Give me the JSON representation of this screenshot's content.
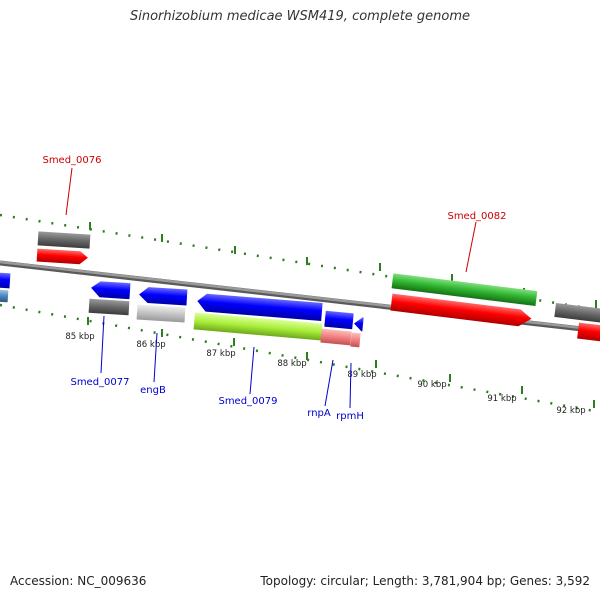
{
  "title": "Sinorhizobium medicae WSM419, complete genome",
  "footer": {
    "accession": "Accession: NC_009636",
    "summary": "Topology: circular; Length: 3,781,904 bp; Genes: 3,592"
  },
  "ticks": [
    "85 kbp",
    "86 kbp",
    "87 kbp",
    "88 kbp",
    "89 kbp",
    "90 kbp",
    "91 kbp",
    "92 kbp"
  ],
  "gene_labels": {
    "top": [
      "Smed_0076",
      "Smed_0082"
    ],
    "bottom": [
      "Smed_0077",
      "engB",
      "Smed_0079",
      "rnpA",
      "rpmH"
    ]
  },
  "colors": {
    "labels_top": "#cc0000",
    "labels_bottom": "#0000cc",
    "tick_marks": "#2e7d20",
    "backbone": "#888888"
  }
}
